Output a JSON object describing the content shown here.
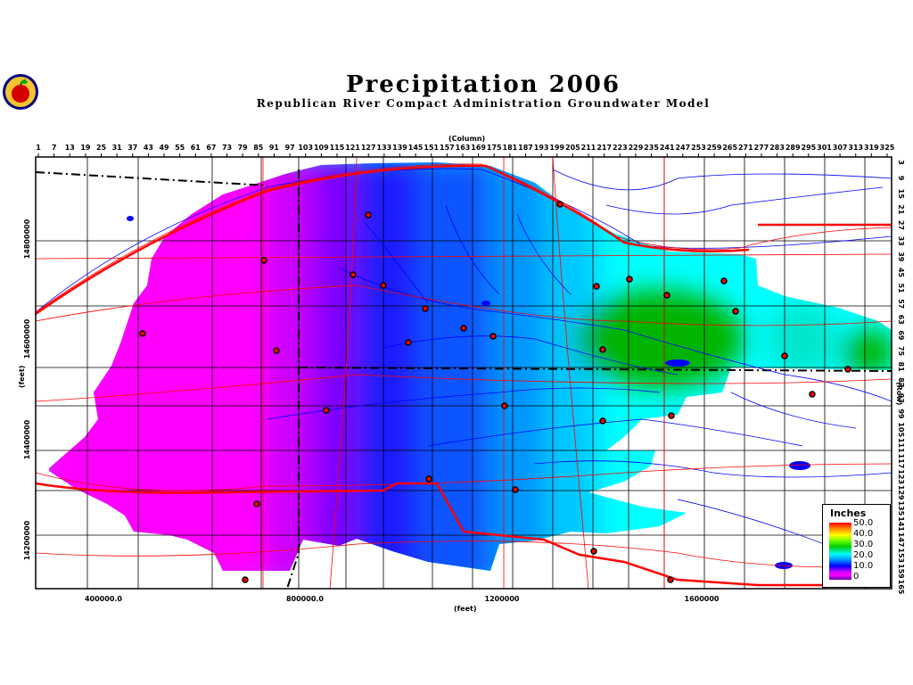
{
  "title": "Precipitation  2006",
  "subtitle": "Republican  River  Compact  Administration  Groundwater  Model",
  "axes": {
    "column_title": "(Column)",
    "row_title": "(Row)",
    "x_title": "(feet)",
    "y_title": "(feet)",
    "column_ticks": [
      "1",
      "7",
      "13",
      "19",
      "25",
      "31",
      "37",
      "43",
      "49",
      "55",
      "61",
      "67",
      "73",
      "79",
      "85",
      "91",
      "97",
      "103",
      "109",
      "115",
      "121",
      "127",
      "133",
      "139",
      "145",
      "151",
      "157",
      "163",
      "169",
      "175",
      "181",
      "187",
      "193",
      "199",
      "205",
      "211",
      "217",
      "223",
      "229",
      "235",
      "241",
      "247",
      "253",
      "259",
      "265",
      "271",
      "277",
      "283",
      "289",
      "295",
      "301",
      "307",
      "313",
      "319",
      "325"
    ],
    "row_ticks": [
      "3",
      "9",
      "15",
      "21",
      "27",
      "33",
      "39",
      "45",
      "51",
      "57",
      "63",
      "69",
      "75",
      "81",
      "87",
      "93",
      "99",
      "105",
      "111",
      "117",
      "123",
      "129",
      "135",
      "141",
      "147",
      "153",
      "159",
      "165"
    ],
    "x_ticks": [
      "400000.0",
      "800000.0",
      "1200000",
      "1600000"
    ],
    "y_ticks": [
      "14800000",
      "14600000",
      "14400000",
      "14200000"
    ]
  },
  "legend": {
    "title": "Inches",
    "labels": [
      "50.0",
      "40.0",
      "30.0",
      "20.0",
      "10.0",
      "0"
    ]
  },
  "colors": {
    "magenta": "#ff00ff",
    "violet": "#8800ff",
    "blue": "#0033ff",
    "mid_blue": "#0088ff",
    "cyan": "#00ffff",
    "green": "#00b400",
    "county_lines": "#000000",
    "rivers": "#0000ff",
    "roads": "#ff0000"
  }
}
